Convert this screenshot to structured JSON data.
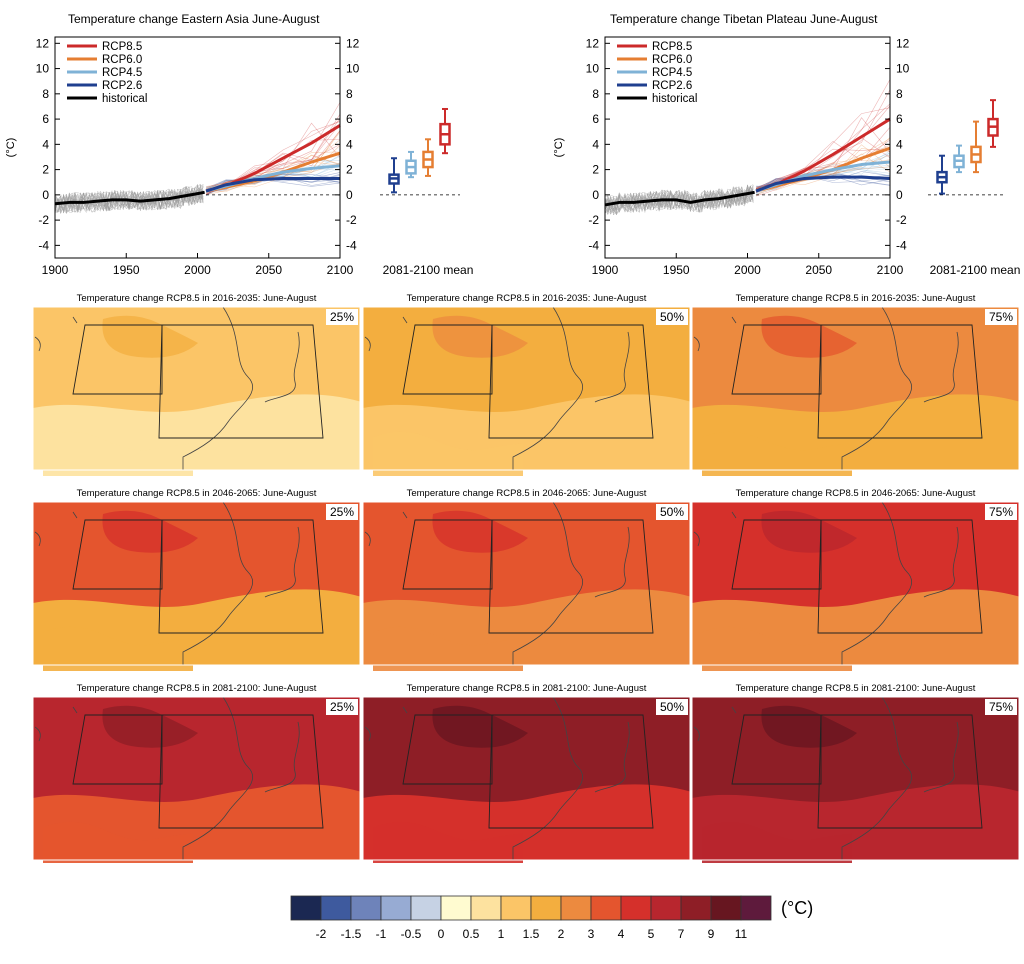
{
  "chart_data": [
    {
      "type": "line",
      "title": "Temperature change Eastern Asia June-August",
      "ylabel": "(°C)",
      "x_ticks": [
        "1900",
        "1950",
        "2000",
        "2050",
        "2100"
      ],
      "y_ticks": [
        "-4",
        "-2",
        "0",
        "2",
        "4",
        "6",
        "8",
        "10",
        "12"
      ],
      "xlim": [
        1900,
        2100
      ],
      "ylim": [
        -5,
        12.5
      ],
      "box_label": "2081-2100 mean",
      "legend_position": "top-left",
      "series": [
        {
          "name": "RCP8.5",
          "color": "#cc2a2a",
          "x": [
            2006,
            2020,
            2040,
            2060,
            2080,
            2100
          ],
          "values": [
            0.3,
            0.7,
            1.7,
            2.9,
            4.1,
            5.5
          ]
        },
        {
          "name": "RCP6.0",
          "color": "#e57e32",
          "x": [
            2006,
            2020,
            2040,
            2060,
            2080,
            2100
          ],
          "values": [
            0.3,
            0.6,
            1.1,
            1.8,
            2.6,
            3.3
          ]
        },
        {
          "name": "RCP4.5",
          "color": "#7fb2d6",
          "x": [
            2006,
            2020,
            2040,
            2060,
            2080,
            2100
          ],
          "values": [
            0.3,
            0.7,
            1.3,
            1.8,
            2.1,
            2.3
          ]
        },
        {
          "name": "RCP2.6",
          "color": "#1f3f8f",
          "x": [
            2006,
            2020,
            2040,
            2060,
            2080,
            2100
          ],
          "values": [
            0.3,
            0.8,
            1.2,
            1.3,
            1.3,
            1.3
          ]
        },
        {
          "name": "historical",
          "color": "#000000",
          "x": [
            1900,
            1910,
            1920,
            1930,
            1940,
            1950,
            1960,
            1970,
            1980,
            1990,
            2000,
            2005
          ],
          "values": [
            -0.7,
            -0.6,
            -0.6,
            -0.5,
            -0.4,
            -0.4,
            -0.5,
            -0.4,
            -0.3,
            -0.1,
            0.1,
            0.2
          ]
        }
      ],
      "boxes": [
        {
          "name": "RCP2.6",
          "color": "#1f3f8f",
          "min": 0.2,
          "q1": 0.9,
          "median": 1.3,
          "q3": 1.6,
          "max": 2.9
        },
        {
          "name": "RCP4.5",
          "color": "#7fb2d6",
          "min": 1.4,
          "q1": 1.7,
          "median": 2.2,
          "q3": 2.7,
          "max": 3.4
        },
        {
          "name": "RCP6.0",
          "color": "#e57e32",
          "min": 1.5,
          "q1": 2.2,
          "median": 2.8,
          "q3": 3.4,
          "max": 4.4
        },
        {
          "name": "RCP8.5",
          "color": "#cc2a2a",
          "min": 3.3,
          "q1": 4.0,
          "median": 4.8,
          "q3": 5.6,
          "max": 6.8
        }
      ]
    },
    {
      "type": "line",
      "title": "Temperature change Tibetan Plateau June-August",
      "ylabel": "(°C)",
      "x_ticks": [
        "1900",
        "1950",
        "2000",
        "2050",
        "2100"
      ],
      "y_ticks": [
        "-4",
        "-2",
        "0",
        "2",
        "4",
        "6",
        "8",
        "10",
        "12"
      ],
      "xlim": [
        1900,
        2100
      ],
      "ylim": [
        -5,
        12.5
      ],
      "box_label": "2081-2100 mean",
      "legend_position": "top-left",
      "series": [
        {
          "name": "RCP8.5",
          "color": "#cc2a2a",
          "x": [
            2006,
            2020,
            2040,
            2060,
            2080,
            2100
          ],
          "values": [
            0.3,
            0.8,
            1.9,
            3.2,
            4.6,
            6.0
          ]
        },
        {
          "name": "RCP6.0",
          "color": "#e57e32",
          "x": [
            2006,
            2020,
            2040,
            2060,
            2080,
            2100
          ],
          "values": [
            0.3,
            0.7,
            1.3,
            2.0,
            2.9,
            3.7
          ]
        },
        {
          "name": "RCP4.5",
          "color": "#7fb2d6",
          "x": [
            2006,
            2020,
            2040,
            2060,
            2080,
            2100
          ],
          "values": [
            0.3,
            0.8,
            1.5,
            2.0,
            2.4,
            2.6
          ]
        },
        {
          "name": "RCP2.6",
          "color": "#1f3f8f",
          "x": [
            2006,
            2020,
            2040,
            2060,
            2080,
            2100
          ],
          "values": [
            0.3,
            0.9,
            1.3,
            1.4,
            1.4,
            1.3
          ]
        },
        {
          "name": "historical",
          "color": "#000000",
          "x": [
            1900,
            1910,
            1920,
            1930,
            1940,
            1950,
            1960,
            1970,
            1980,
            1990,
            2000,
            2005
          ],
          "values": [
            -0.8,
            -0.6,
            -0.6,
            -0.5,
            -0.4,
            -0.4,
            -0.6,
            -0.4,
            -0.3,
            -0.1,
            0.1,
            0.2
          ]
        }
      ],
      "boxes": [
        {
          "name": "RCP2.6",
          "color": "#1f3f8f",
          "min": 0.1,
          "q1": 1.0,
          "median": 1.4,
          "q3": 1.8,
          "max": 3.1
        },
        {
          "name": "RCP4.5",
          "color": "#7fb2d6",
          "min": 1.8,
          "q1": 2.2,
          "median": 2.7,
          "q3": 3.1,
          "max": 3.9
        },
        {
          "name": "RCP6.0",
          "color": "#e57e32",
          "min": 1.8,
          "q1": 2.6,
          "median": 3.2,
          "q3": 3.8,
          "max": 5.8
        },
        {
          "name": "RCP8.5",
          "color": "#cc2a2a",
          "min": 3.8,
          "q1": 4.7,
          "median": 5.4,
          "q3": 6.0,
          "max": 7.5
        }
      ]
    },
    {
      "type": "heatmap",
      "panels": [
        {
          "title": "Temperature change RCP8.5 in 2016-2035: June-August",
          "percentile": "25%",
          "base_level": 1,
          "patch_level": 0.5
        },
        {
          "title": "Temperature change RCP8.5 in 2016-2035: June-August",
          "percentile": "50%",
          "base_level": 1.5,
          "patch_level": 1
        },
        {
          "title": "Temperature change RCP8.5 in 2016-2035: June-August",
          "percentile": "75%",
          "base_level": 2,
          "patch_level": 1.5
        },
        {
          "title": "Temperature change RCP8.5 in 2046-2065: June-August",
          "percentile": "25%",
          "base_level": 3,
          "patch_level": 1.5
        },
        {
          "title": "Temperature change RCP8.5 in 2046-2065: June-August",
          "percentile": "50%",
          "base_level": 3,
          "patch_level": 2
        },
        {
          "title": "Temperature change RCP8.5 in 2046-2065: June-August",
          "percentile": "75%",
          "base_level": 4,
          "patch_level": 2
        },
        {
          "title": "Temperature change RCP8.5 in 2081-2100: June-August",
          "percentile": "25%",
          "base_level": 5,
          "patch_level": 3
        },
        {
          "title": "Temperature change RCP8.5 in 2081-2100: June-August",
          "percentile": "50%",
          "base_level": 7,
          "patch_level": 4
        },
        {
          "title": "Temperature change RCP8.5 in 2081-2100: June-August",
          "percentile": "75%",
          "base_level": 7,
          "patch_level": 5
        }
      ],
      "colorbar": {
        "unit": "(°C)",
        "tick_labels": [
          "-2",
          "-1.5",
          "-1",
          "-0.5",
          "0",
          "0.5",
          "1",
          "1.5",
          "2",
          "3",
          "4",
          "5",
          "7",
          "9",
          "11"
        ],
        "colors": [
          "#1b2852",
          "#3e5a9e",
          "#6e83ba",
          "#97abd3",
          "#c6d2e4",
          "#fffbd0",
          "#fde29f",
          "#fbc567",
          "#f3ae3f",
          "#ec8a3f",
          "#e4552e",
          "#d5302b",
          "#b8262e",
          "#8e1e26",
          "#671620",
          "#5e1a3c"
        ]
      }
    }
  ]
}
